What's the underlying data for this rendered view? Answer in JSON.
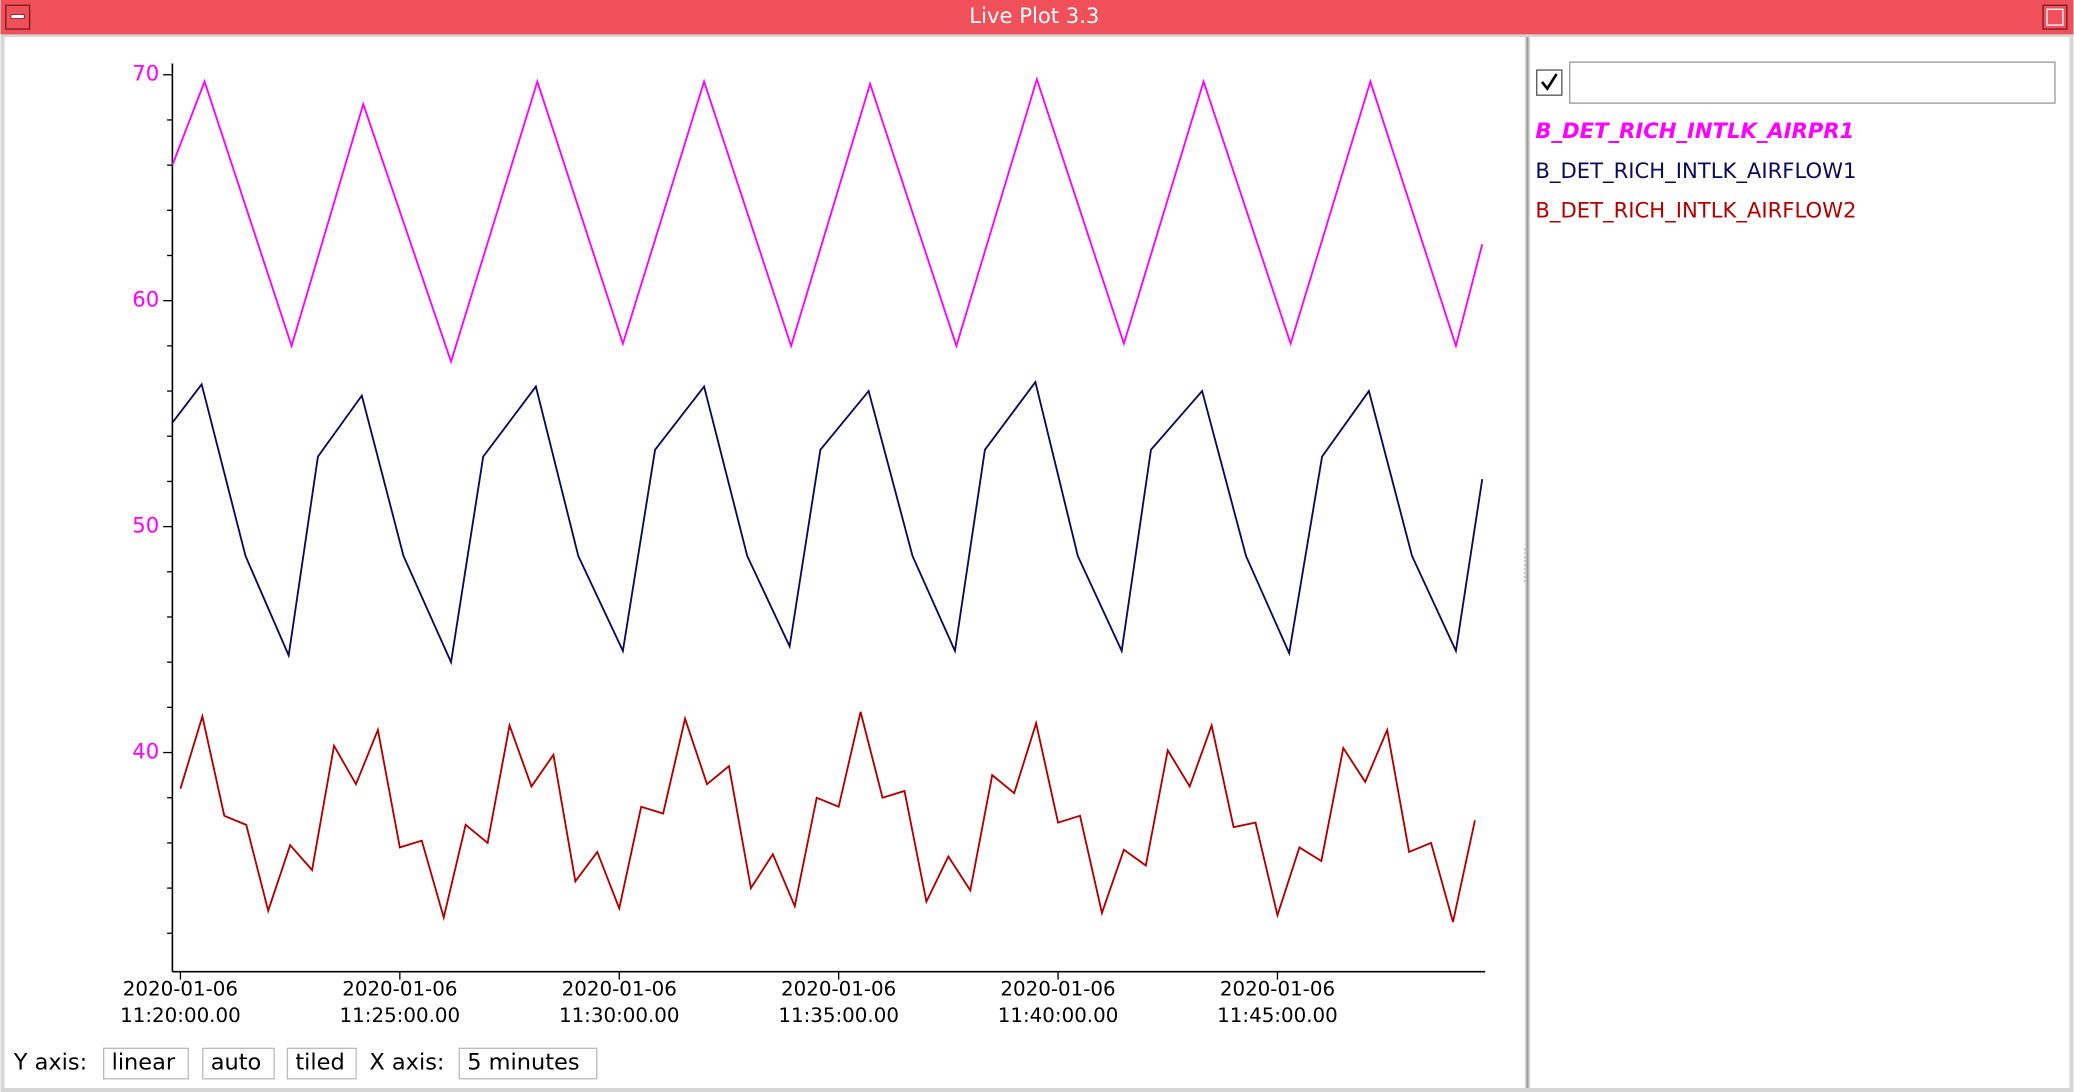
{
  "window": {
    "title": "Live Plot 3.3"
  },
  "controls": {
    "y_axis_label": "Y axis:",
    "y_scale": "linear",
    "y_range": "auto",
    "y_layout": "tiled",
    "x_axis_label": "X axis:",
    "x_span": "5 minutes"
  },
  "chart_data": {
    "type": "line",
    "xlim": [
      "2020-01-06 11:19:49",
      "2020-01-06 11:49:44"
    ],
    "xticks": [
      {
        "value": "2020-01-06 11:20:00",
        "label": [
          "2020-01-06",
          "11:20:00.00"
        ]
      },
      {
        "value": "2020-01-06 11:25:00",
        "label": [
          "2020-01-06",
          "11:25:00.00"
        ]
      },
      {
        "value": "2020-01-06 11:30:00",
        "label": [
          "2020-01-06",
          "11:30:00.00"
        ]
      },
      {
        "value": "2020-01-06 11:35:00",
        "label": [
          "2020-01-06",
          "11:35:00.00"
        ]
      },
      {
        "value": "2020-01-06 11:40:00",
        "label": [
          "2020-01-06",
          "11:40:00.00"
        ]
      },
      {
        "value": "2020-01-06 11:45:00",
        "label": [
          "2020-01-06",
          "11:45:00.00"
        ]
      }
    ],
    "ylim": [
      30.3,
      70.5
    ],
    "yticks": [
      40,
      50,
      60,
      70
    ],
    "yminorticks": [
      32,
      34,
      36,
      38,
      42,
      44,
      46,
      48,
      52,
      54,
      56,
      58,
      62,
      64,
      66,
      68
    ],
    "grid": false,
    "series": [
      {
        "name": "B_DET_RICH_INTLK_AIRPR1",
        "color": "#ff00ff",
        "x": [
          "2020-01-06 11:19:49",
          "2020-01-06 11:20:33",
          "2020-01-06 11:22:32",
          "2020-01-06 11:24:10",
          "2020-01-06 11:26:10",
          "2020-01-06 11:28:08",
          "2020-01-06 11:30:05",
          "2020-01-06 11:31:56",
          "2020-01-06 11:33:55",
          "2020-01-06 11:35:43",
          "2020-01-06 11:37:41",
          "2020-01-06 11:39:31",
          "2020-01-06 11:41:30",
          "2020-01-06 11:43:19",
          "2020-01-06 11:45:18",
          "2020-01-06 11:47:07",
          "2020-01-06 11:49:04",
          "2020-01-06 11:49:40"
        ],
        "values": [
          66.0,
          69.7,
          58.0,
          68.7,
          57.3,
          69.7,
          58.1,
          69.7,
          58.0,
          69.6,
          58.0,
          69.8,
          58.1,
          69.7,
          58.1,
          69.7,
          58.0,
          62.5
        ]
      },
      {
        "name": "B_DET_RICH_INTLK_AIRFLOW1",
        "color": "#0a0a5a",
        "x": [
          "2020-01-06 11:19:49",
          "2020-01-06 11:20:29",
          "2020-01-06 11:21:29",
          "2020-01-06 11:22:28",
          "2020-01-06 11:23:08",
          "2020-01-06 11:24:08",
          "2020-01-06 11:25:05",
          "2020-01-06 11:26:10",
          "2020-01-06 11:26:54",
          "2020-01-06 11:28:06",
          "2020-01-06 11:29:04",
          "2020-01-06 11:30:05",
          "2020-01-06 11:30:49",
          "2020-01-06 11:31:56",
          "2020-01-06 11:32:55",
          "2020-01-06 11:33:53",
          "2020-01-06 11:34:35",
          "2020-01-06 11:35:41",
          "2020-01-06 11:36:41",
          "2020-01-06 11:37:39",
          "2020-01-06 11:38:20",
          "2020-01-06 11:39:29",
          "2020-01-06 11:40:27",
          "2020-01-06 11:41:27",
          "2020-01-06 11:42:07",
          "2020-01-06 11:43:17",
          "2020-01-06 11:44:17",
          "2020-01-06 11:45:16",
          "2020-01-06 11:46:01",
          "2020-01-06 11:47:05",
          "2020-01-06 11:48:04",
          "2020-01-06 11:49:04",
          "2020-01-06 11:49:40"
        ],
        "values": [
          54.6,
          56.3,
          48.7,
          44.3,
          53.1,
          55.8,
          48.7,
          44.0,
          53.1,
          56.2,
          48.7,
          44.5,
          53.4,
          56.2,
          48.7,
          44.7,
          53.4,
          56.0,
          48.7,
          44.5,
          53.4,
          56.4,
          48.7,
          44.5,
          53.4,
          56.0,
          48.7,
          44.4,
          53.1,
          56.0,
          48.7,
          44.5,
          52.1
        ]
      },
      {
        "name": "B_DET_RICH_INTLK_AIRFLOW2",
        "color": "#b00000",
        "x": [
          "2020-01-06 11:20:00",
          "2020-01-06 11:20:30",
          "2020-01-06 11:21:00",
          "2020-01-06 11:21:30",
          "2020-01-06 11:22:00",
          "2020-01-06 11:22:30",
          "2020-01-06 11:23:00",
          "2020-01-06 11:23:30",
          "2020-01-06 11:24:00",
          "2020-01-06 11:24:30",
          "2020-01-06 11:25:00",
          "2020-01-06 11:25:30",
          "2020-01-06 11:26:00",
          "2020-01-06 11:26:30",
          "2020-01-06 11:27:00",
          "2020-01-06 11:27:30",
          "2020-01-06 11:28:00",
          "2020-01-06 11:28:30",
          "2020-01-06 11:29:00",
          "2020-01-06 11:29:30",
          "2020-01-06 11:30:00",
          "2020-01-06 11:30:30",
          "2020-01-06 11:31:00",
          "2020-01-06 11:31:30",
          "2020-01-06 11:32:00",
          "2020-01-06 11:32:30",
          "2020-01-06 11:33:00",
          "2020-01-06 11:33:30",
          "2020-01-06 11:34:00",
          "2020-01-06 11:34:30",
          "2020-01-06 11:35:00",
          "2020-01-06 11:35:30",
          "2020-01-06 11:36:00",
          "2020-01-06 11:36:30",
          "2020-01-06 11:37:00",
          "2020-01-06 11:37:30",
          "2020-01-06 11:38:00",
          "2020-01-06 11:38:30",
          "2020-01-06 11:39:00",
          "2020-01-06 11:39:30",
          "2020-01-06 11:40:00",
          "2020-01-06 11:40:30",
          "2020-01-06 11:41:00",
          "2020-01-06 11:41:30",
          "2020-01-06 11:42:00",
          "2020-01-06 11:42:30",
          "2020-01-06 11:43:00",
          "2020-01-06 11:43:30",
          "2020-01-06 11:44:00",
          "2020-01-06 11:44:30",
          "2020-01-06 11:45:00",
          "2020-01-06 11:45:30",
          "2020-01-06 11:46:00",
          "2020-01-06 11:46:30",
          "2020-01-06 11:47:00",
          "2020-01-06 11:47:30",
          "2020-01-06 11:48:00",
          "2020-01-06 11:48:30",
          "2020-01-06 11:49:00",
          "2020-01-06 11:49:30"
        ],
        "values": [
          38.4,
          41.6,
          37.2,
          36.8,
          33.0,
          35.9,
          34.8,
          40.3,
          38.6,
          41.0,
          35.8,
          36.1,
          32.7,
          36.8,
          36.0,
          41.2,
          38.5,
          39.9,
          34.3,
          35.6,
          33.1,
          37.6,
          37.3,
          41.5,
          38.6,
          39.4,
          34.0,
          35.5,
          33.2,
          38.0,
          37.6,
          41.8,
          38.0,
          38.3,
          33.4,
          35.4,
          33.9,
          39.0,
          38.2,
          41.3,
          36.9,
          37.2,
          32.9,
          35.7,
          35.0,
          40.1,
          38.5,
          41.2,
          36.7,
          36.9,
          32.8,
          35.8,
          35.2,
          40.2,
          38.7,
          41.0,
          35.6,
          36.0,
          32.5,
          37.0
        ]
      }
    ]
  }
}
